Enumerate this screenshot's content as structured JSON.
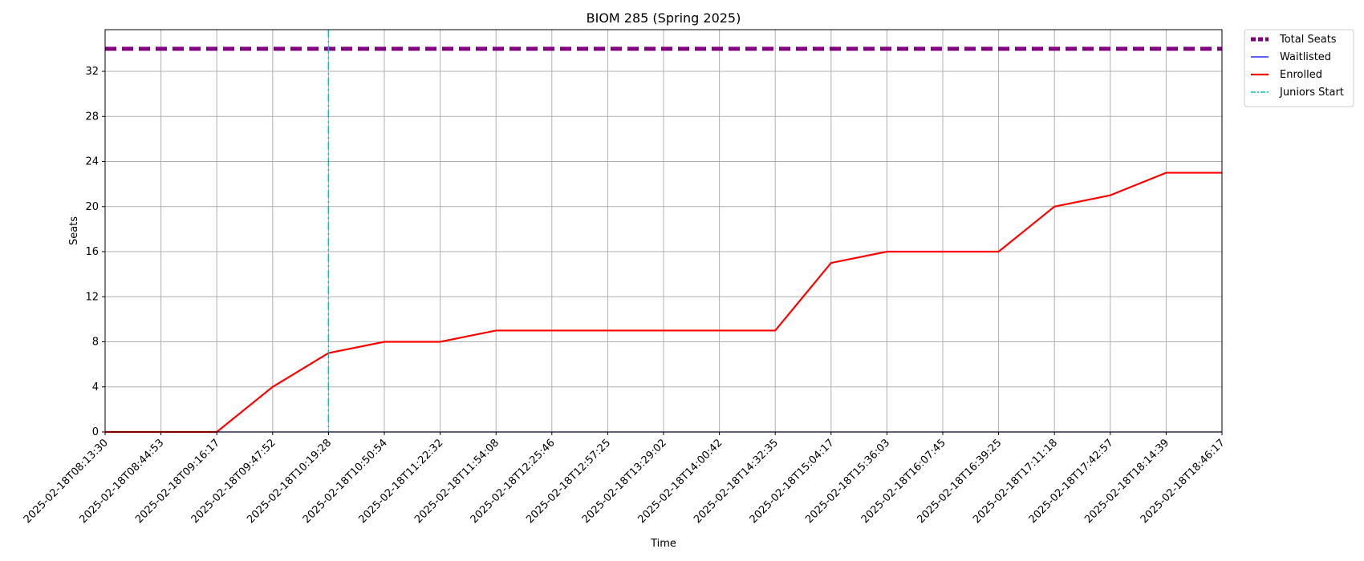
{
  "chart_data": {
    "type": "line",
    "title": "BIOM 285 (Spring 2025)",
    "xlabel": "Time",
    "ylabel": "Seats",
    "ylim": [
      0,
      35.7
    ],
    "yticks": [
      0,
      4,
      8,
      12,
      16,
      20,
      24,
      28,
      32
    ],
    "grid": true,
    "legend_position": "outside-top-right",
    "x": [
      "2025-02-18T08:13:30",
      "2025-02-18T08:44:53",
      "2025-02-18T09:16:17",
      "2025-02-18T09:47:52",
      "2025-02-18T10:19:28",
      "2025-02-18T10:50:54",
      "2025-02-18T11:22:32",
      "2025-02-18T11:54:08",
      "2025-02-18T12:25:46",
      "2025-02-18T12:57:25",
      "2025-02-18T13:29:02",
      "2025-02-18T14:00:42",
      "2025-02-18T14:32:35",
      "2025-02-18T15:04:17",
      "2025-02-18T15:36:03",
      "2025-02-18T16:07:45",
      "2025-02-18T16:39:25",
      "2025-02-18T17:11:18",
      "2025-02-18T17:42:57",
      "2025-02-18T18:14:39",
      "2025-02-18T18:46:17"
    ],
    "series": [
      {
        "name": "Total Seats",
        "color": "#800080",
        "style": "dashed",
        "values": [
          34,
          34,
          34,
          34,
          34,
          34,
          34,
          34,
          34,
          34,
          34,
          34,
          34,
          34,
          34,
          34,
          34,
          34,
          34,
          34,
          34
        ]
      },
      {
        "name": "Waitlisted",
        "color": "#0000ff",
        "style": "solid",
        "values": [
          0,
          0,
          0,
          0,
          0,
          0,
          0,
          0,
          0,
          0,
          0,
          0,
          0,
          0,
          0,
          0,
          0,
          0,
          0,
          0,
          0
        ]
      },
      {
        "name": "Enrolled",
        "color": "#ff0000",
        "style": "solid",
        "values": [
          0,
          0,
          0,
          4,
          7,
          8,
          8,
          9,
          9,
          9,
          9,
          9,
          9,
          15,
          16,
          16,
          16,
          20,
          21,
          23,
          23
        ]
      }
    ],
    "vlines": [
      {
        "name": "Juniors Start",
        "color": "#00bfbf",
        "style": "dashdot",
        "x": "2025-02-18T10:19:28"
      }
    ]
  }
}
